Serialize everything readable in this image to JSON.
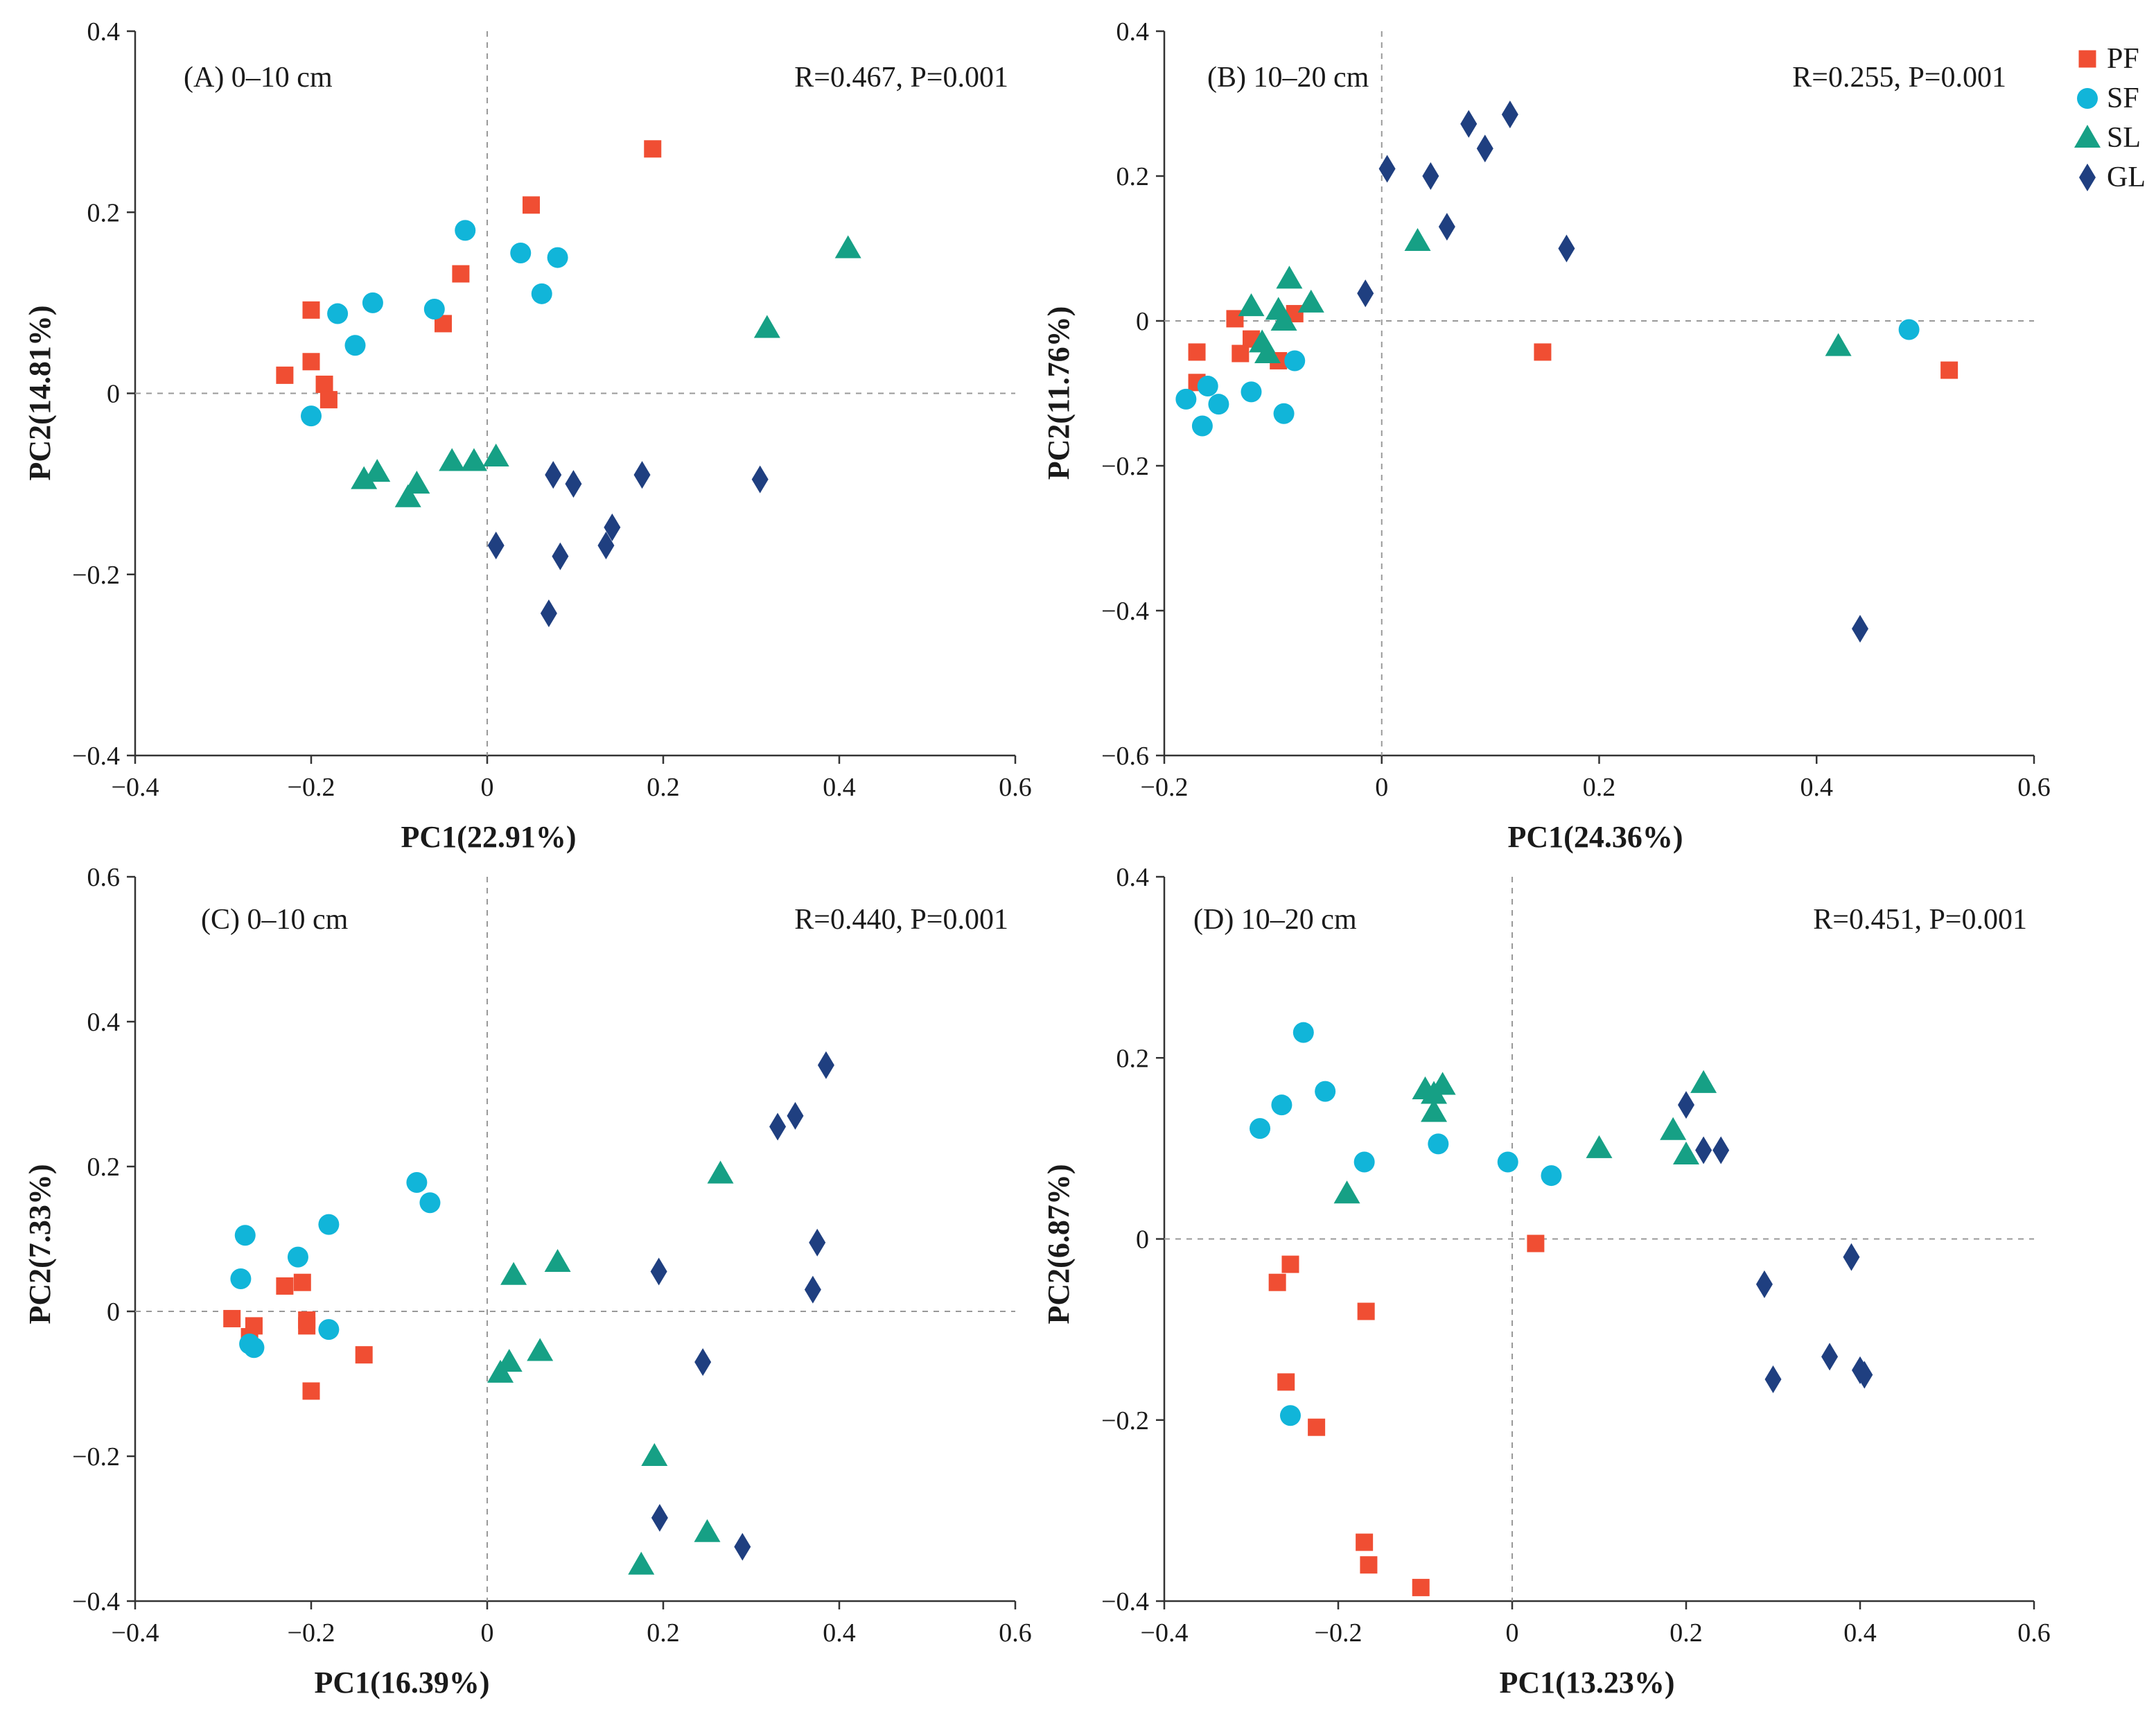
{
  "colors": {
    "PF": "#f04e33",
    "SF": "#11b5d9",
    "SL": "#16a085",
    "GL": "#1f3f80"
  },
  "legend": [
    {
      "key": "PF",
      "label": "PF",
      "shape": "square"
    },
    {
      "key": "SF",
      "label": "SF",
      "shape": "circle"
    },
    {
      "key": "SL",
      "label": "SL",
      "shape": "triangle"
    },
    {
      "key": "GL",
      "label": "GL",
      "shape": "diamond"
    }
  ],
  "chart_data": [
    {
      "type": "scatter",
      "title": "(A) 0–10 cm",
      "stat": "R=0.467, P=0.001",
      "xlabel": "PC1(22.91%)",
      "ylabel": "PC2(14.81%)",
      "xlim": [
        -0.4,
        0.6
      ],
      "ylim": [
        -0.4,
        0.4
      ],
      "xticks": [
        -0.4,
        -0.2,
        0,
        0.2,
        0.4,
        0.6
      ],
      "yticks": [
        -0.4,
        -0.2,
        0,
        0.2,
        0.4
      ],
      "series": [
        {
          "name": "PF",
          "points": [
            [
              -0.23,
              0.02
            ],
            [
              -0.2,
              0.035
            ],
            [
              -0.2,
              0.092
            ],
            [
              -0.185,
              0.01
            ],
            [
              -0.18,
              -0.007
            ],
            [
              -0.05,
              0.077
            ],
            [
              -0.03,
              0.132
            ],
            [
              0.05,
              0.208
            ],
            [
              0.188,
              0.27
            ]
          ]
        },
        {
          "name": "SF",
          "points": [
            [
              -0.2,
              -0.025
            ],
            [
              -0.17,
              0.088
            ],
            [
              -0.15,
              0.053
            ],
            [
              -0.13,
              0.1
            ],
            [
              -0.06,
              0.093
            ],
            [
              -0.025,
              0.18
            ],
            [
              0.038,
              0.155
            ],
            [
              0.062,
              0.11
            ],
            [
              0.08,
              0.15
            ]
          ]
        },
        {
          "name": "SL",
          "points": [
            [
              -0.14,
              -0.095
            ],
            [
              -0.125,
              -0.087
            ],
            [
              -0.09,
              -0.115
            ],
            [
              -0.08,
              -0.1
            ],
            [
              -0.04,
              -0.075
            ],
            [
              -0.015,
              -0.075
            ],
            [
              0.01,
              -0.07
            ],
            [
              0.318,
              0.072
            ],
            [
              0.41,
              0.16
            ]
          ]
        },
        {
          "name": "GL",
          "points": [
            [
              0.01,
              -0.168
            ],
            [
              0.07,
              -0.243
            ],
            [
              0.075,
              -0.09
            ],
            [
              0.083,
              -0.18
            ],
            [
              0.098,
              -0.1
            ],
            [
              0.135,
              -0.168
            ],
            [
              0.142,
              -0.148
            ],
            [
              0.176,
              -0.09
            ],
            [
              0.31,
              -0.095
            ]
          ]
        }
      ]
    },
    {
      "type": "scatter",
      "title": "(B) 10–20 cm",
      "stat": "R=0.255, P=0.001",
      "xlabel": "PC1(24.36%)",
      "ylabel": "PC2(11.76%)",
      "xlim": [
        -0.2,
        0.6
      ],
      "ylim": [
        -0.6,
        0.4
      ],
      "xticks": [
        -0.2,
        0,
        0.2,
        0.4,
        0.6
      ],
      "yticks": [
        -0.6,
        -0.4,
        -0.2,
        0,
        0.2,
        0.4
      ],
      "series": [
        {
          "name": "PF",
          "points": [
            [
              -0.17,
              -0.043
            ],
            [
              -0.17,
              -0.085
            ],
            [
              -0.135,
              0.003
            ],
            [
              -0.13,
              -0.045
            ],
            [
              -0.12,
              -0.025
            ],
            [
              -0.095,
              -0.055
            ],
            [
              -0.08,
              0.01
            ],
            [
              0.148,
              -0.043
            ],
            [
              0.522,
              -0.068
            ]
          ]
        },
        {
          "name": "SF",
          "points": [
            [
              -0.18,
              -0.108
            ],
            [
              -0.165,
              -0.145
            ],
            [
              -0.16,
              -0.09
            ],
            [
              -0.15,
              -0.115
            ],
            [
              -0.12,
              -0.098
            ],
            [
              -0.09,
              -0.128
            ],
            [
              -0.08,
              -0.055
            ],
            [
              0.485,
              -0.012
            ]
          ]
        },
        {
          "name": "SL",
          "points": [
            [
              -0.12,
              0.02
            ],
            [
              -0.11,
              -0.03
            ],
            [
              -0.105,
              -0.045
            ],
            [
              -0.095,
              0.015
            ],
            [
              -0.09,
              0.0
            ],
            [
              -0.085,
              0.058
            ],
            [
              -0.065,
              0.025
            ],
            [
              0.033,
              0.11
            ],
            [
              0.42,
              -0.035
            ]
          ]
        },
        {
          "name": "GL",
          "points": [
            [
              -0.015,
              0.038
            ],
            [
              0.005,
              0.21
            ],
            [
              0.045,
              0.2
            ],
            [
              0.06,
              0.13
            ],
            [
              0.08,
              0.272
            ],
            [
              0.095,
              0.238
            ],
            [
              0.118,
              0.285
            ],
            [
              0.17,
              0.1
            ],
            [
              0.44,
              -0.425
            ]
          ]
        }
      ]
    },
    {
      "type": "scatter",
      "title": "(C) 0–10 cm",
      "stat": "R=0.440, P=0.001",
      "xlabel": "PC1(16.39%)",
      "ylabel": "PC2(7.33%)",
      "xlim": [
        -0.4,
        0.6
      ],
      "ylim": [
        -0.4,
        0.6
      ],
      "xticks": [
        -0.4,
        -0.2,
        0,
        0.2,
        0.4,
        0.6
      ],
      "yticks": [
        -0.4,
        -0.2,
        0,
        0.2,
        0.4,
        0.6
      ],
      "series": [
        {
          "name": "PF",
          "points": [
            [
              -0.29,
              -0.01
            ],
            [
              -0.27,
              -0.035
            ],
            [
              -0.265,
              -0.02
            ],
            [
              -0.23,
              0.035
            ],
            [
              -0.21,
              0.04
            ],
            [
              -0.205,
              -0.012
            ],
            [
              -0.205,
              -0.02
            ],
            [
              -0.2,
              -0.11
            ],
            [
              -0.14,
              -0.06
            ]
          ]
        },
        {
          "name": "SF",
          "points": [
            [
              -0.28,
              0.045
            ],
            [
              -0.275,
              0.105
            ],
            [
              -0.27,
              -0.045
            ],
            [
              -0.265,
              -0.05
            ],
            [
              -0.215,
              0.075
            ],
            [
              -0.18,
              0.12
            ],
            [
              -0.18,
              -0.025
            ],
            [
              -0.08,
              0.178
            ],
            [
              -0.065,
              0.15
            ]
          ]
        },
        {
          "name": "SL",
          "points": [
            [
              0.015,
              -0.085
            ],
            [
              0.025,
              -0.07
            ],
            [
              0.03,
              0.05
            ],
            [
              0.06,
              -0.055
            ],
            [
              0.08,
              0.068
            ],
            [
              0.175,
              -0.35
            ],
            [
              0.19,
              -0.2
            ],
            [
              0.25,
              -0.305
            ],
            [
              0.265,
              0.19
            ]
          ]
        },
        {
          "name": "GL",
          "points": [
            [
              0.195,
              0.055
            ],
            [
              0.196,
              -0.285
            ],
            [
              0.245,
              -0.07
            ],
            [
              0.29,
              -0.325
            ],
            [
              0.33,
              0.255
            ],
            [
              0.35,
              0.27
            ],
            [
              0.37,
              0.03
            ],
            [
              0.375,
              0.095
            ],
            [
              0.385,
              0.34
            ]
          ]
        }
      ]
    },
    {
      "type": "scatter",
      "title": "(D) 10–20 cm",
      "stat": "R=0.451, P=0.001",
      "xlabel": "PC1(13.23%)",
      "ylabel": "PC2(6.87%)",
      "xlim": [
        -0.4,
        0.6
      ],
      "ylim": [
        -0.4,
        0.4
      ],
      "xticks": [
        -0.4,
        -0.2,
        0,
        0.2,
        0.4,
        0.6
      ],
      "yticks": [
        -0.4,
        -0.2,
        0,
        0.2,
        0.4
      ],
      "series": [
        {
          "name": "PF",
          "points": [
            [
              -0.27,
              -0.048
            ],
            [
              -0.26,
              -0.158
            ],
            [
              -0.255,
              -0.028
            ],
            [
              -0.225,
              -0.208
            ],
            [
              -0.17,
              -0.335
            ],
            [
              -0.168,
              -0.08
            ],
            [
              -0.165,
              -0.36
            ],
            [
              -0.105,
              -0.385
            ],
            [
              0.027,
              -0.005
            ]
          ]
        },
        {
          "name": "SF",
          "points": [
            [
              -0.29,
              0.122
            ],
            [
              -0.265,
              0.148
            ],
            [
              -0.255,
              -0.195
            ],
            [
              -0.24,
              0.228
            ],
            [
              -0.215,
              0.163
            ],
            [
              -0.17,
              0.085
            ],
            [
              -0.085,
              0.105
            ],
            [
              -0.005,
              0.085
            ],
            [
              0.045,
              0.07
            ]
          ]
        },
        {
          "name": "SL",
          "points": [
            [
              -0.19,
              0.05
            ],
            [
              -0.1,
              0.165
            ],
            [
              -0.09,
              0.14
            ],
            [
              -0.09,
              0.16
            ],
            [
              -0.08,
              0.17
            ],
            [
              0.1,
              0.1
            ],
            [
              0.185,
              0.12
            ],
            [
              0.2,
              0.093
            ],
            [
              0.22,
              0.172
            ]
          ]
        },
        {
          "name": "GL",
          "points": [
            [
              0.2,
              0.148
            ],
            [
              0.22,
              0.098
            ],
            [
              0.24,
              0.098
            ],
            [
              0.29,
              -0.05
            ],
            [
              0.3,
              -0.155
            ],
            [
              0.365,
              -0.13
            ],
            [
              0.39,
              -0.02
            ],
            [
              0.4,
              -0.145
            ],
            [
              0.405,
              -0.15
            ]
          ]
        }
      ]
    }
  ]
}
